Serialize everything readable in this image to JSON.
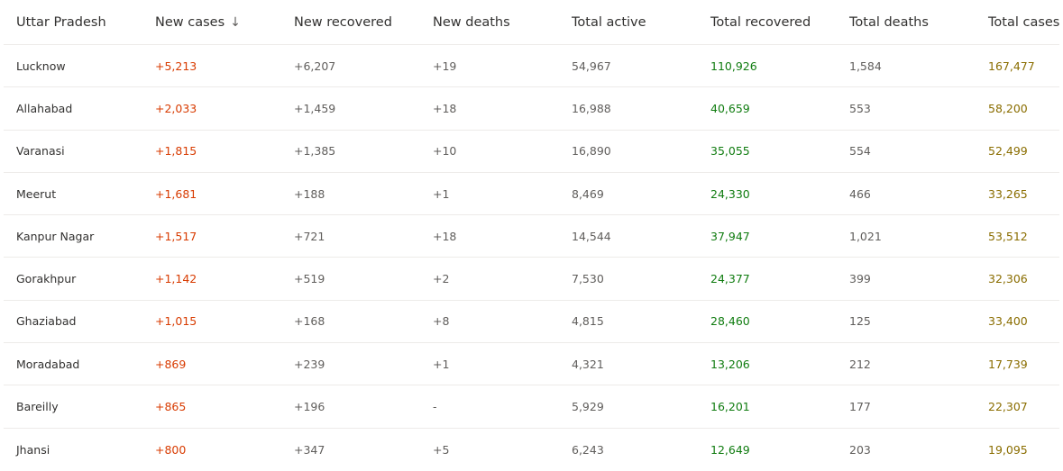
{
  "table": {
    "headers": [
      "Uttar Pradesh",
      "New cases",
      "New recovered",
      "New deaths",
      "Total active",
      "Total recovered",
      "Total deaths",
      "Total cases"
    ],
    "sort_icon": "arrow-down-icon",
    "sort_glyph": "↓",
    "colors": {
      "new_cases": "#d83b01",
      "total_recovered": "#107c10",
      "total_cases": "#8a6d00"
    },
    "rows": [
      [
        "Lucknow",
        "+5,213",
        "+6,207",
        "+19",
        "54,967",
        "110,926",
        "1,584",
        "167,477"
      ],
      [
        "Allahabad",
        "+2,033",
        "+1,459",
        "+18",
        "16,988",
        "40,659",
        "553",
        "58,200"
      ],
      [
        "Varanasi",
        "+1,815",
        "+1,385",
        "+10",
        "16,890",
        "35,055",
        "554",
        "52,499"
      ],
      [
        "Meerut",
        "+1,681",
        "+188",
        "+1",
        "8,469",
        "24,330",
        "466",
        "33,265"
      ],
      [
        "Kanpur Nagar",
        "+1,517",
        "+721",
        "+18",
        "14,544",
        "37,947",
        "1,021",
        "53,512"
      ],
      [
        "Gorakhpur",
        "+1,142",
        "+519",
        "+2",
        "7,530",
        "24,377",
        "399",
        "32,306"
      ],
      [
        "Ghaziabad",
        "+1,015",
        "+168",
        "+8",
        "4,815",
        "28,460",
        "125",
        "33,400"
      ],
      [
        "Moradabad",
        "+869",
        "+239",
        "+1",
        "4,321",
        "13,206",
        "212",
        "17,739"
      ],
      [
        "Bareilly",
        "+865",
        "+196",
        "-",
        "5,929",
        "16,201",
        "177",
        "22,307"
      ],
      [
        "Jhansi",
        "+800",
        "+347",
        "+5",
        "6,243",
        "12,649",
        "203",
        "19,095"
      ]
    ]
  }
}
